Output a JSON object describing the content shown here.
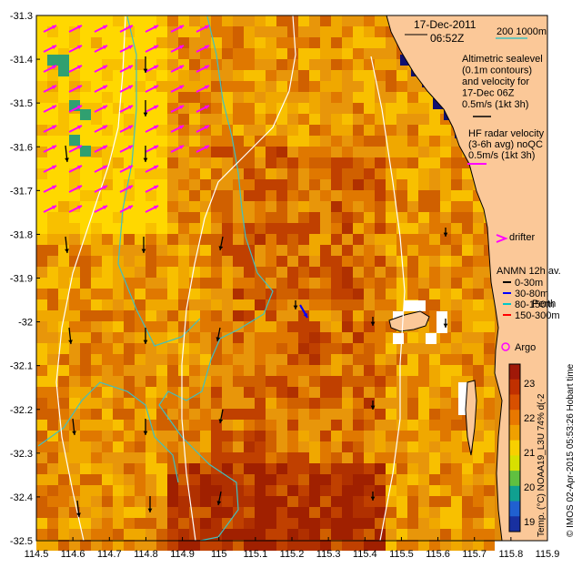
{
  "map": {
    "date_line1": "17-Dec-2011",
    "date_line2": "06:52Z",
    "depth_contours": "200  1000m",
    "sealevel_text": [
      "Altimetric sealevel",
      "(0.1m contours)",
      "and velocity for",
      "17-Dec 06Z",
      "0.5m/s (1kt 3h)"
    ],
    "hf_text": [
      "HF radar velocity",
      "(3-6h avg) noQC",
      "0.5m/s (1kt 3h)"
    ],
    "drifter_label": "drifter",
    "anmn_title": "ANMN 12h av.",
    "anmn_items": [
      {
        "label": "0-30m",
        "color": "#000000"
      },
      {
        "label": "30-80m",
        "color": "#0000ff"
      },
      {
        "label": "80-150m",
        "color": "#00c8c8"
      },
      {
        "label": "150-300m",
        "color": "#ff0000"
      }
    ],
    "perth_label": "Perth",
    "argo_label": "Argo",
    "colorbar_label": "Temp. (°C) NOAA19_L3U 74% d(-2",
    "colorbar_ticks": [
      "23",
      "22",
      "21",
      "20",
      "19"
    ],
    "copyright": "© IMOS 02-Apr-2015 05:53:26 Hobart time",
    "x_ticks": [
      "114.5",
      "114.6",
      "114.7",
      "114.8",
      "114.9",
      "115",
      "115.1",
      "115.2",
      "115.3",
      "115.4",
      "115.5",
      "115.6",
      "115.7",
      "115.8",
      "115.9"
    ],
    "y_ticks": [
      "-31.3",
      "-31.4",
      "-31.5",
      "-31.6",
      "-31.7",
      "-31.8",
      "-31.9",
      "-32",
      "-32.1",
      "-32.2",
      "-32.3",
      "-32.4",
      "-32.5"
    ],
    "colors": {
      "land": "#fbc898",
      "sst_mid": "#e8960a",
      "sst_warm": "#a02000",
      "sst_cool": "#ffd800",
      "hf_arrow": "#ff00ff",
      "contour_200": "#40c0c0"
    }
  }
}
